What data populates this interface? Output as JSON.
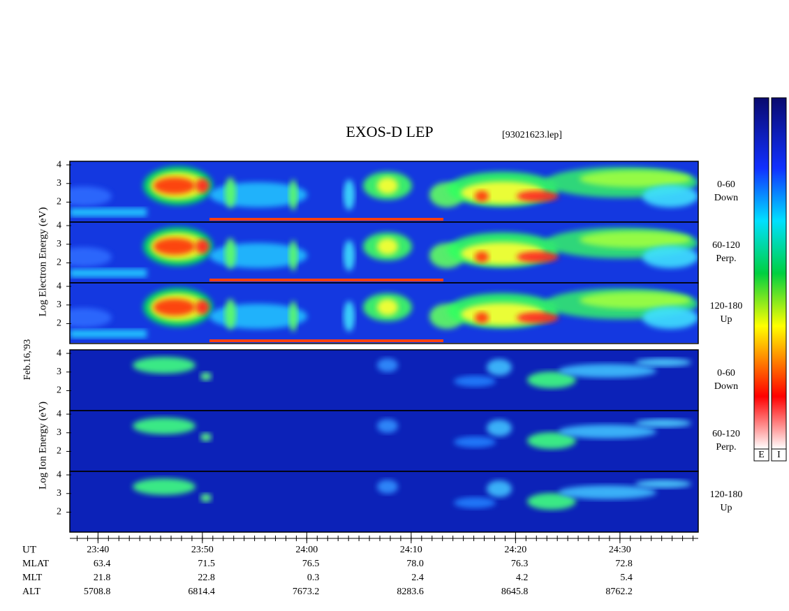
{
  "title": "EXOS-D LEP",
  "file": "[93021623.lep]",
  "date": "Feb.16,'93",
  "electron_axis_label": "Log Electron Energy (eV)",
  "ion_axis_label": "Log Ion Energy (eV)",
  "panels": [
    {
      "species": "electron",
      "pitch": "0-60",
      "direction": "Down"
    },
    {
      "species": "electron",
      "pitch": "60-120",
      "direction": "Perp."
    },
    {
      "species": "electron",
      "pitch": "120-180",
      "direction": "Up"
    },
    {
      "species": "ion",
      "pitch": "0-60",
      "direction": "Down"
    },
    {
      "species": "ion",
      "pitch": "60-120",
      "direction": "Perp."
    },
    {
      "species": "ion",
      "pitch": "120-180",
      "direction": "Up"
    }
  ],
  "ylim": [
    0.93,
    4.19
  ],
  "yticks": [
    2,
    3,
    4
  ],
  "xlim": [
    1417.3,
    1477.5
  ],
  "xticks": [
    {
      "value": 1420,
      "label": "23:40"
    },
    {
      "value": 1430,
      "label": "23:50"
    },
    {
      "value": 1440,
      "label": "24:00"
    },
    {
      "value": 1450,
      "label": "24:10"
    },
    {
      "value": 1460,
      "label": "24:20"
    },
    {
      "value": 1470,
      "label": "24:30"
    }
  ],
  "x_label": "UT",
  "colorbars": [
    "E",
    "I"
  ],
  "ephemeris": [
    {
      "label": "MLAT",
      "values": [
        "63.4",
        "71.5",
        "76.5",
        "78.0",
        "76.3",
        "72.8"
      ]
    },
    {
      "label": "MLT",
      "values": [
        "21.8",
        "22.8",
        "0.3",
        "2.4",
        "4.2",
        "5.4"
      ]
    },
    {
      "label": "ALT",
      "values": [
        "5708.8",
        "6814.4",
        "7673.2",
        "8283.6",
        "8645.8",
        "8762.2"
      ]
    }
  ]
}
